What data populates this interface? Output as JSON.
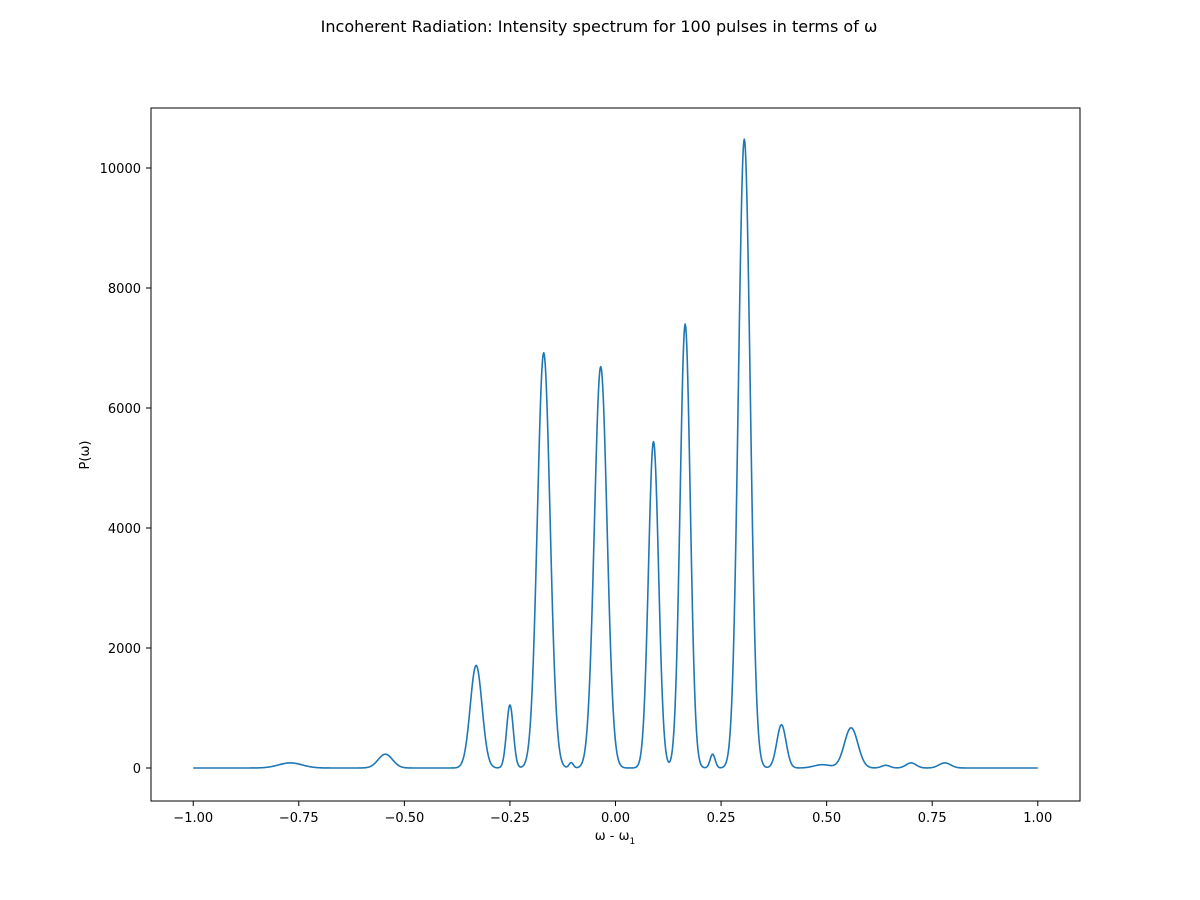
{
  "chart_data": {
    "type": "line",
    "title": "Incoherent Radiation: Intensity spectrum for 100 pulses in terms of ω",
    "xlabel_base": "ω - ω",
    "xlabel_subscript": "1",
    "ylabel": "P(ω)",
    "xlim": [
      -1.1,
      1.1
    ],
    "ylim": [
      -550,
      11000
    ],
    "xticks": [
      -1.0,
      -0.75,
      -0.5,
      -0.25,
      0.0,
      0.25,
      0.5,
      0.75,
      1.0
    ],
    "xtick_labels": [
      "−1.00",
      "−0.75",
      "−0.50",
      "−0.25",
      "0.00",
      "0.25",
      "0.50",
      "0.75",
      "1.00"
    ],
    "yticks": [
      0,
      2000,
      4000,
      6000,
      8000,
      10000
    ],
    "ytick_labels": [
      "0",
      "2000",
      "4000",
      "6000",
      "8000",
      "10000"
    ],
    "grid": false,
    "series": [
      {
        "color": "#1f77b4",
        "peaks": [
          [
            -0.77,
            85,
            0.028
          ],
          [
            -0.545,
            230,
            0.017
          ],
          [
            -0.33,
            1710,
            0.014
          ],
          [
            -0.25,
            1050,
            0.008
          ],
          [
            -0.17,
            6920,
            0.015
          ],
          [
            -0.105,
            90,
            0.005
          ],
          [
            -0.035,
            6690,
            0.015
          ],
          [
            0.09,
            5440,
            0.012
          ],
          [
            0.165,
            7400,
            0.012
          ],
          [
            0.23,
            230,
            0.006
          ],
          [
            0.305,
            10480,
            0.014
          ],
          [
            0.393,
            720,
            0.011
          ],
          [
            0.49,
            55,
            0.02
          ],
          [
            0.558,
            670,
            0.016
          ],
          [
            0.64,
            45,
            0.01
          ],
          [
            0.7,
            85,
            0.012
          ],
          [
            0.78,
            85,
            0.014
          ]
        ]
      }
    ]
  }
}
